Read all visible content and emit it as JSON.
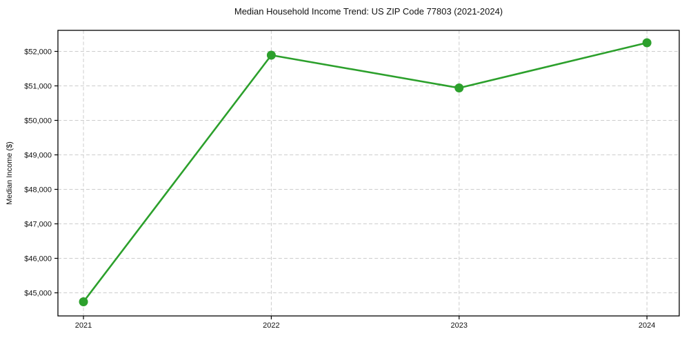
{
  "chart_data": {
    "type": "line",
    "title": "Median Household Income Trend: US ZIP Code 77803 (2021-2024)",
    "xlabel": "",
    "ylabel": "Median Income ($)",
    "categories": [
      "2021",
      "2022",
      "2023",
      "2024"
    ],
    "x": [
      2021,
      2022,
      2023,
      2024
    ],
    "series": [
      {
        "name": "Median Household Income",
        "values": [
          44740,
          51890,
          50940,
          52250
        ]
      }
    ],
    "ytick_values": [
      45000,
      46000,
      47000,
      48000,
      49000,
      50000,
      51000,
      52000
    ],
    "ytick_labels": [
      "$45,000",
      "$46,000",
      "$47,000",
      "$48,000",
      "$49,000",
      "$50,000",
      "$51,000",
      "$52,000"
    ],
    "xlim": [
      2020.864,
      2024.172
    ],
    "ylim": [
      44330,
      52610
    ],
    "grid": true,
    "legend": "none",
    "line_color": "#2ca02c",
    "marker_color": "#2ca02c",
    "grid_color": "#cccccc",
    "axis_color": "#000000",
    "background_color": "#ffffff",
    "line_width": 2.6,
    "marker_radius": 6.5
  }
}
